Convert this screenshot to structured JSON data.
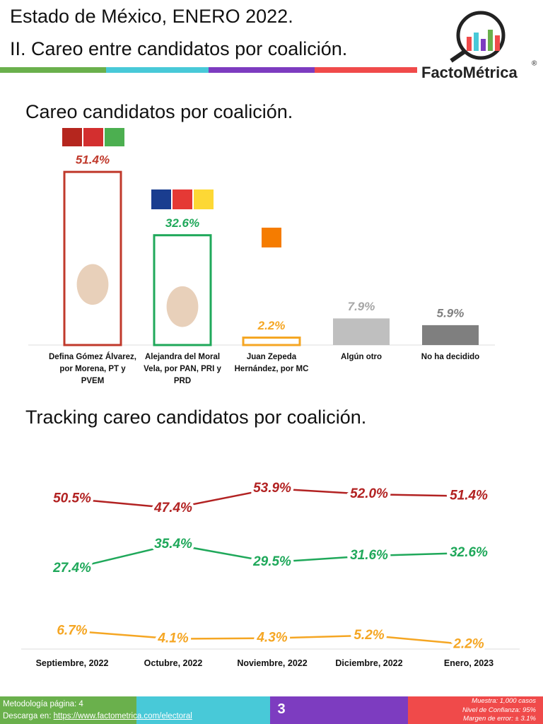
{
  "header": {
    "title": "Estado de México, ENERO 2022.",
    "subtitle": "II. Careo entre candidatos por coalición.",
    "brand": "FactoMétrica",
    "brand_mark": "®"
  },
  "chart_data": [
    {
      "type": "bar",
      "title": "Careo candidatos por coalición.",
      "categories": [
        "Defina Gómez Álvarez, por Morena, PT y PVEM",
        "Alejandra del Moral Vela, por PAN, PRI y PRD",
        "Juan Zepeda Hernández, por MC",
        "Algún otro",
        "No ha decidido"
      ],
      "values": [
        51.4,
        32.6,
        2.2,
        7.9,
        5.9
      ],
      "value_labels": [
        "51.4%",
        "32.6%",
        "2.2%",
        "7.9%",
        "5.9%"
      ],
      "colors": [
        "#c0392b",
        "#1fa85a",
        "#f5a623",
        "#bfbfbf",
        "#7f7f7f"
      ],
      "label_colors": [
        "#c0392b",
        "#1fa85a",
        "#f5a623",
        "#a6a6a6",
        "#7f7f7f"
      ],
      "outlined": [
        true,
        true,
        true,
        false,
        false
      ],
      "ylim": [
        0,
        55
      ]
    },
    {
      "type": "line",
      "title": "Tracking careo candidatos por coalición.",
      "categories": [
        "Septiembre, 2022",
        "Octubre, 2022",
        "Noviembre, 2022",
        "Diciembre, 2022",
        "Enero, 2023"
      ],
      "series": [
        {
          "color": "#b22222",
          "values": [
            50.5,
            47.4,
            53.9,
            52.0,
            51.4
          ],
          "value_labels": [
            "50.5%",
            "47.4%",
            "53.9%",
            "52.0%",
            "51.4%"
          ]
        },
        {
          "color": "#1fa85a",
          "values": [
            27.4,
            35.4,
            29.5,
            31.6,
            32.6
          ],
          "value_labels": [
            "27.4%",
            "35.4%",
            "29.5%",
            "31.6%",
            "32.6%"
          ]
        },
        {
          "color": "#f5a623",
          "values": [
            6.7,
            4.1,
            4.3,
            5.2,
            2.2
          ],
          "value_labels": [
            "6.7%",
            "4.1%",
            "4.3%",
            "5.2%",
            "2.2%"
          ]
        }
      ],
      "ylim": [
        0,
        60
      ]
    }
  ],
  "footer": {
    "methodology": "Metodología página: 4",
    "download": "Descarga en: ",
    "link": "https://www.factometrica.com/electoral",
    "page": "3",
    "sample": "Muestra:  1,000 casos",
    "confidence": "Nivel de Confianza: 95%",
    "error": "Margen de error: ± 3.1%"
  }
}
